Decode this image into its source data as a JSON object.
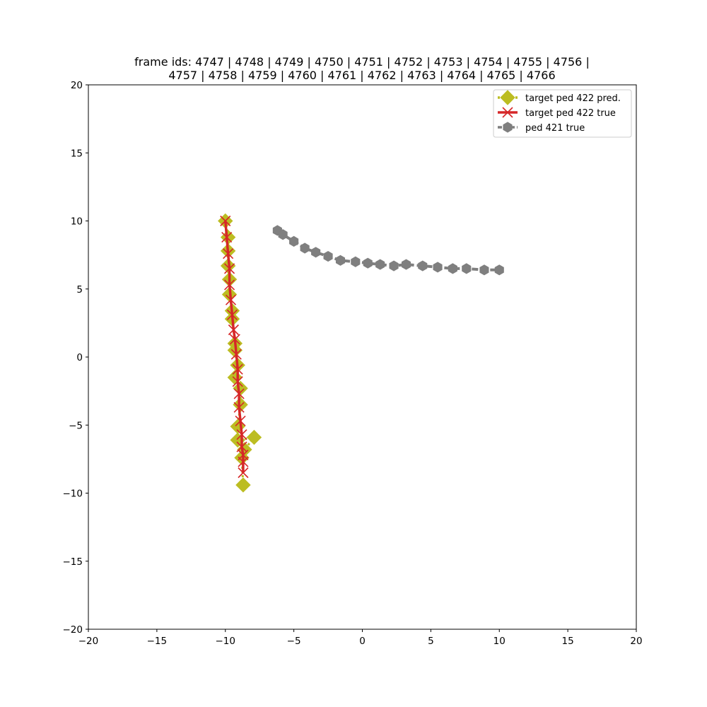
{
  "chart_data": {
    "type": "line",
    "title_lines": [
      "frame ids: 4747 | 4748 | 4749 | 4750 | 4751 | 4752 | 4753 | 4754 | 4755 | 4756 |",
      "4757 | 4758 | 4759 | 4760 | 4761 | 4762 | 4763 | 4764 | 4765 | 4766"
    ],
    "xlabel": "",
    "ylabel": "",
    "xlim": [
      -20,
      20
    ],
    "ylim": [
      -20,
      20
    ],
    "xticks": [
      -20,
      -15,
      -10,
      -5,
      0,
      5,
      10,
      15,
      20
    ],
    "yticks": [
      -20,
      -15,
      -10,
      -5,
      0,
      5,
      10,
      15,
      20
    ],
    "xtick_labels": [
      "−20",
      "−15",
      "−10",
      "−5",
      "0",
      "5",
      "10",
      "15",
      "20"
    ],
    "ytick_labels": [
      "−20",
      "−15",
      "−10",
      "−5",
      "0",
      "5",
      "10",
      "15",
      "20"
    ],
    "grid": false,
    "legend_position": "top-right",
    "series": [
      {
        "name": "target ped 422 pred.",
        "color": "#bcbd22",
        "marker": "diamond",
        "linestyle": "dotted",
        "x": [
          -10.0,
          -9.8,
          -9.8,
          -9.8,
          -9.7,
          -9.7,
          -9.5,
          -9.5,
          -9.3,
          -9.3,
          -9.1,
          -9.3,
          -8.9,
          -8.9,
          -9.1,
          -9.1,
          -7.9,
          -8.6,
          -8.8,
          -8.7
        ],
        "y": [
          10.0,
          8.8,
          7.8,
          6.7,
          5.7,
          4.6,
          3.4,
          2.8,
          1.0,
          0.5,
          -0.6,
          -1.5,
          -2.3,
          -3.5,
          -5.1,
          -6.1,
          -5.9,
          -6.8,
          -7.4,
          -9.4
        ]
      },
      {
        "name": "target ped 422 true",
        "color": "#d62728",
        "marker": "x",
        "linestyle": "solid",
        "x": [
          -10.0,
          -9.9,
          -9.8,
          -9.7,
          -9.7,
          -9.6,
          -9.5,
          -9.4,
          -9.3,
          -9.2,
          -9.1,
          -9.1,
          -9.0,
          -9.0,
          -8.9,
          -8.8,
          -8.8,
          -8.7,
          -8.7,
          -8.7
        ],
        "y": [
          10.0,
          8.8,
          7.6,
          6.5,
          5.3,
          4.2,
          3.1,
          2.0,
          1.3,
          0.2,
          -0.9,
          -1.8,
          -2.7,
          -3.7,
          -4.7,
          -5.7,
          -6.6,
          -7.2,
          -7.7,
          -8.5
        ]
      },
      {
        "name": "ped 421 true",
        "color": "#7f7f7f",
        "marker": "hexagon",
        "linestyle": "dashed",
        "x": [
          -6.2,
          -5.8,
          -5.0,
          -4.2,
          -3.4,
          -2.5,
          -1.6,
          -0.5,
          0.4,
          1.3,
          2.3,
          3.2,
          4.4,
          5.5,
          6.6,
          7.6,
          8.9,
          10.0
        ],
        "y": [
          9.3,
          9.0,
          8.5,
          8.0,
          7.7,
          7.4,
          7.1,
          7.0,
          6.9,
          6.8,
          6.7,
          6.8,
          6.7,
          6.6,
          6.5,
          6.5,
          6.4,
          6.4
        ]
      }
    ]
  }
}
